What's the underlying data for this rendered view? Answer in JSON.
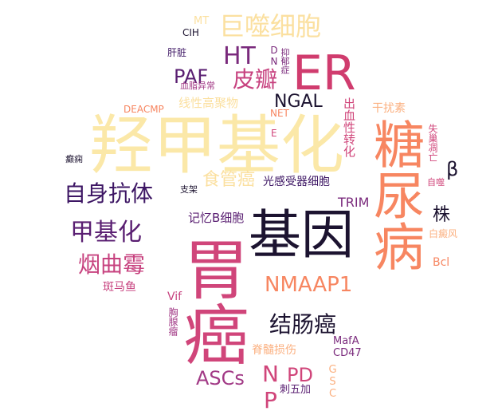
{
  "words": [
    {
      "text": "羟甲基化",
      "color": "#fbe8a8",
      "size": 80,
      "dir": "h"
    },
    {
      "text": "基因",
      "color": "#1c1330",
      "size": 66,
      "dir": "h"
    },
    {
      "text": "胃癌",
      "color": "#d0457a",
      "size": 82,
      "dir": "v"
    },
    {
      "text": "糖尿病",
      "color": "#f78661",
      "size": 64,
      "dir": "v"
    },
    {
      "text": "ER",
      "color": "#d03c6e",
      "size": 60,
      "dir": "h"
    },
    {
      "text": "巨噬细胞",
      "color": "#fbe0a0",
      "size": 32,
      "dir": "h"
    },
    {
      "text": "HT",
      "color": "#7a2a7c",
      "size": 30,
      "dir": "h"
    },
    {
      "text": "皮瓣",
      "color": "#c7427f",
      "size": 28,
      "dir": "h"
    },
    {
      "text": "PAF",
      "color": "#5a1f72",
      "size": 24,
      "dir": "h"
    },
    {
      "text": "NGAL",
      "color": "#1c1330",
      "size": 22,
      "dir": "h"
    },
    {
      "text": "自身抗体",
      "color": "#3d1664",
      "size": 28,
      "dir": "h"
    },
    {
      "text": "甲基化",
      "color": "#5a1f72",
      "size": 30,
      "dir": "h"
    },
    {
      "text": "烟曲霉",
      "color": "#c7427f",
      "size": 28,
      "dir": "h"
    },
    {
      "text": "食管癌",
      "color": "#fbe0a0",
      "size": 22,
      "dir": "h"
    },
    {
      "text": "NMAAP1",
      "color": "#f78661",
      "size": 26,
      "dir": "h"
    },
    {
      "text": "结肠癌",
      "color": "#1c1330",
      "size": 28,
      "dir": "h"
    },
    {
      "text": "ASCs",
      "color": "#a23a86",
      "size": 24,
      "dir": "h"
    },
    {
      "text": "PD",
      "color": "#d0457a",
      "size": 24,
      "dir": "h"
    },
    {
      "text": "NP",
      "color": "#d0457a",
      "size": 28,
      "dir": "v"
    },
    {
      "text": "株",
      "color": "#1c1330",
      "size": 22,
      "dir": "h"
    },
    {
      "text": "β",
      "color": "#1c1330",
      "size": 24,
      "dir": "h"
    },
    {
      "text": "光感受器细胞",
      "color": "#3d1664",
      "size": 14,
      "dir": "h"
    },
    {
      "text": "记忆B细胞",
      "color": "#5a1f72",
      "size": 15,
      "dir": "h"
    },
    {
      "text": "TRIM",
      "color": "#7a2a7c",
      "size": 16,
      "dir": "h"
    },
    {
      "text": "线性高聚物",
      "color": "#fbe0a0",
      "size": 15,
      "dir": "h"
    },
    {
      "text": "出血性转化",
      "color": "#d0457a",
      "size": 15,
      "dir": "v"
    },
    {
      "text": "干扰素",
      "color": "#fbb080",
      "size": 14,
      "dir": "h"
    },
    {
      "text": "脊髓损伤",
      "color": "#fbb080",
      "size": 14,
      "dir": "h"
    },
    {
      "text": "斑马鱼",
      "color": "#c7427f",
      "size": 14,
      "dir": "h"
    },
    {
      "text": "Vif",
      "color": "#c7427f",
      "size": 14,
      "dir": "h"
    },
    {
      "text": "胸腺瘤",
      "color": "#a23a86",
      "size": 12,
      "dir": "v"
    },
    {
      "text": "MafA",
      "color": "#7a2a7c",
      "size": 13,
      "dir": "h"
    },
    {
      "text": "CD47",
      "color": "#7a2a7c",
      "size": 13,
      "dir": "h"
    },
    {
      "text": "GSC",
      "color": "#fbb080",
      "size": 13,
      "dir": "v"
    },
    {
      "text": "刺五加",
      "color": "#5a1f72",
      "size": 13,
      "dir": "h"
    },
    {
      "text": "Bcl",
      "color": "#f78661",
      "size": 14,
      "dir": "h"
    },
    {
      "text": "白癜风",
      "color": "#fbb080",
      "size": 12,
      "dir": "h"
    },
    {
      "text": "自噬",
      "color": "#d0457a",
      "size": 11,
      "dir": "h"
    },
    {
      "text": "失巢凋亡",
      "color": "#d0457a",
      "size": 12,
      "dir": "v"
    },
    {
      "text": "DEACMP",
      "color": "#f78661",
      "size": 12,
      "dir": "h"
    },
    {
      "text": "NET",
      "color": "#f78661",
      "size": 12,
      "dir": "h"
    },
    {
      "text": "E",
      "color": "#d0457a",
      "size": 12,
      "dir": "h"
    },
    {
      "text": "癫痫",
      "color": "#1c1330",
      "size": 11,
      "dir": "h"
    },
    {
      "text": "支架",
      "color": "#1c1330",
      "size": 11,
      "dir": "h"
    },
    {
      "text": "MT",
      "color": "#fbe0a0",
      "size": 13,
      "dir": "h"
    },
    {
      "text": "CIH",
      "color": "#1c1330",
      "size": 12,
      "dir": "h"
    },
    {
      "text": "肝脏",
      "color": "#3d1664",
      "size": 12,
      "dir": "h"
    },
    {
      "text": "DN",
      "color": "#7a2a7c",
      "size": 12,
      "dir": "v"
    },
    {
      "text": "抑郁症",
      "color": "#7a2a7c",
      "size": 11,
      "dir": "v"
    },
    {
      "text": "血脂异常",
      "color": "#a23a86",
      "size": 11,
      "dir": "h"
    }
  ]
}
